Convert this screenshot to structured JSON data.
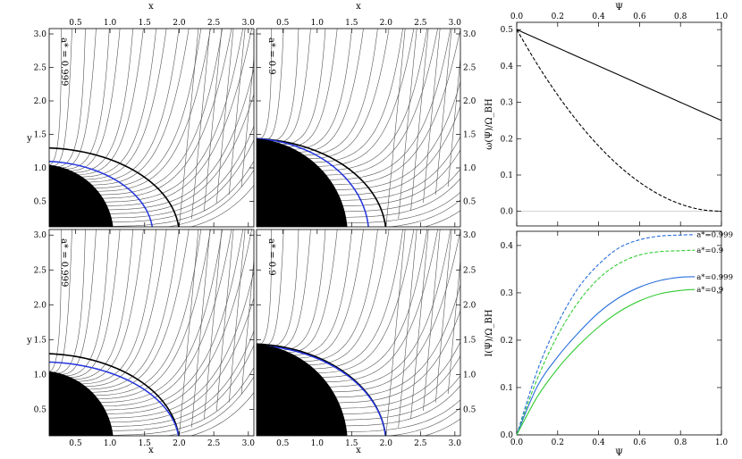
{
  "chart_data": [
    {
      "type": "line",
      "id": "magnetosphere_panels",
      "x": {
        "label": "x",
        "ticks": [
          "0.5",
          "1.0",
          "1.5",
          "2.0",
          "2.5",
          "3.0"
        ],
        "lim": [
          0.12,
          3.08
        ]
      },
      "y": {
        "label": "y",
        "ticks": [
          "0.5",
          "1.0",
          "1.5",
          "2.0",
          "2.5",
          "3.0"
        ],
        "lim": [
          0.12,
          3.08
        ]
      },
      "panels": [
        {
          "label": "a* = 0.999",
          "horizon_r": 1.045,
          "ergo_r": 2.0,
          "ergo_top": 1.3,
          "lc_r": 1.62,
          "lc_top": 1.1,
          "angle": 88
        },
        {
          "label": "a* = 0.9",
          "horizon_r": 1.436,
          "ergo_r": 2.0,
          "ergo_top": 1.44,
          "lc_r": 1.75,
          "lc_top": 1.44,
          "angle": 0
        },
        {
          "label": "a* = 0.999",
          "horizon_r": 1.045,
          "ergo_r": 2.0,
          "ergo_top": 1.3,
          "lc_r": 2.0,
          "lc_top": 1.18,
          "angle": 88
        },
        {
          "label": "a* = 0.9",
          "horizon_r": 1.436,
          "ergo_r": 2.0,
          "ergo_top": 1.44,
          "lc_r": 2.0,
          "lc_top": 1.42,
          "angle": 0
        }
      ]
    },
    {
      "type": "line",
      "id": "omega_plot",
      "xlabel": "Ψ",
      "ylabel": "ω(Ψ)/Ω_BH",
      "xlim": [
        0,
        1
      ],
      "ylim": [
        -0.04,
        0.52
      ],
      "xticks": [
        "0.0",
        "0.2",
        "0.4",
        "0.6",
        "0.8",
        "1.0"
      ],
      "yticks": [
        "0.0",
        "0.1",
        "0.2",
        "0.3",
        "0.4",
        "0.5"
      ],
      "series": [
        {
          "style": "solid",
          "x": [
            0,
            0.2,
            0.4,
            0.6,
            0.8,
            1.0
          ],
          "y": [
            0.5,
            0.45,
            0.4,
            0.35,
            0.3,
            0.25
          ]
        },
        {
          "style": "dashed",
          "x": [
            0,
            0.1,
            0.2,
            0.3,
            0.4,
            0.5,
            0.6,
            0.7,
            0.8,
            0.9,
            1.0
          ],
          "y": [
            0.5,
            0.405,
            0.32,
            0.245,
            0.18,
            0.125,
            0.08,
            0.045,
            0.02,
            0.005,
            0.0
          ]
        }
      ]
    },
    {
      "type": "line",
      "id": "current_plot",
      "xlabel": "Ψ",
      "ylabel": "I(Ψ)/Ω_BH",
      "xlim": [
        0,
        1
      ],
      "ylim": [
        0,
        0.43
      ],
      "xticks": [
        "0.0",
        "0.2",
        "0.4",
        "0.6",
        "0.8",
        "1.0"
      ],
      "yticks": [
        "0.0",
        "0.1",
        "0.2",
        "0.3",
        "0.4"
      ],
      "series": [
        {
          "name": "a*=0.999",
          "color": "#2a6fdb",
          "style": "dashed",
          "x": [
            0,
            0.1,
            0.2,
            0.3,
            0.4,
            0.5,
            0.6,
            0.7,
            0.8,
            0.87
          ],
          "y": [
            0,
            0.135,
            0.235,
            0.31,
            0.36,
            0.395,
            0.412,
            0.42,
            0.422,
            0.423
          ]
        },
        {
          "name": "a*=0.9",
          "color": "#33cc33",
          "style": "dashed",
          "x": [
            0,
            0.1,
            0.2,
            0.3,
            0.4,
            0.5,
            0.6,
            0.7,
            0.8,
            0.87
          ],
          "y": [
            0,
            0.118,
            0.21,
            0.28,
            0.33,
            0.362,
            0.38,
            0.387,
            0.389,
            0.39
          ]
        },
        {
          "name": "a*=0.999",
          "color": "#2a6fdb",
          "style": "solid",
          "x": [
            0,
            0.1,
            0.2,
            0.3,
            0.4,
            0.5,
            0.6,
            0.7,
            0.8,
            0.87
          ],
          "y": [
            0,
            0.102,
            0.165,
            0.215,
            0.258,
            0.29,
            0.312,
            0.326,
            0.333,
            0.334
          ]
        },
        {
          "name": "a*=0.9",
          "color": "#33cc33",
          "style": "solid",
          "x": [
            0,
            0.1,
            0.2,
            0.3,
            0.4,
            0.5,
            0.6,
            0.7,
            0.8,
            0.87
          ],
          "y": [
            0,
            0.08,
            0.14,
            0.188,
            0.228,
            0.26,
            0.283,
            0.298,
            0.305,
            0.307
          ]
        }
      ]
    }
  ]
}
